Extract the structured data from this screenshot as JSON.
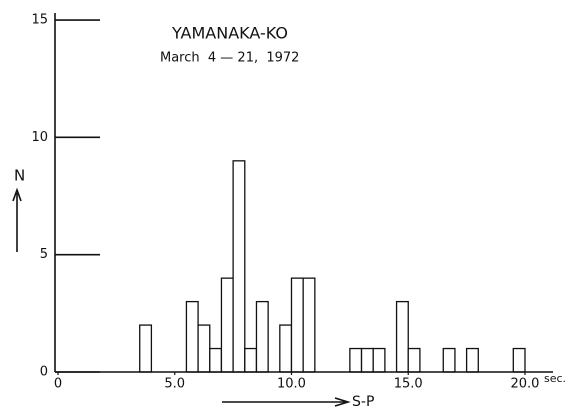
{
  "chart_data": {
    "type": "histogram",
    "title": "YAMANAKA-KO",
    "subtitle": "March  4 — 21,  1972",
    "xlabel": "S-P",
    "x_unit": "sec.",
    "ylabel": "N",
    "bins": [
      3.5,
      4.0,
      4.5,
      5.0,
      5.5,
      6.0,
      6.5,
      7.0,
      7.5,
      8.0,
      8.5,
      9.0,
      9.5,
      10.0,
      10.5,
      11.0,
      11.5,
      12.0,
      12.5,
      13.0,
      13.5,
      14.0,
      14.5,
      15.0,
      15.5,
      16.0,
      16.5,
      17.0,
      17.5,
      18.0,
      18.5,
      19.0,
      19.5,
      20.0
    ],
    "values": [
      2,
      0,
      0,
      0,
      3,
      2,
      1,
      4,
      9,
      1,
      3,
      0,
      2,
      4,
      4,
      0,
      0,
      0,
      1,
      1,
      1,
      0,
      3,
      1,
      0,
      0,
      1,
      0,
      1,
      0,
      0,
      0,
      1
    ],
    "color": "#ffffff",
    "edgecolor": "#111111",
    "xlim": [
      0,
      21.2
    ],
    "xticks": [
      0,
      {
        "value": 5,
        "label": "5.0"
      },
      {
        "value": 10,
        "label": "10.0"
      },
      {
        "value": 15,
        "label": "15.0"
      },
      {
        "value": 20,
        "label": "20.0"
      }
    ],
    "ylim": [
      0,
      15.3
    ],
    "yticks": [
      0,
      5,
      10,
      15
    ],
    "grid": false
  }
}
